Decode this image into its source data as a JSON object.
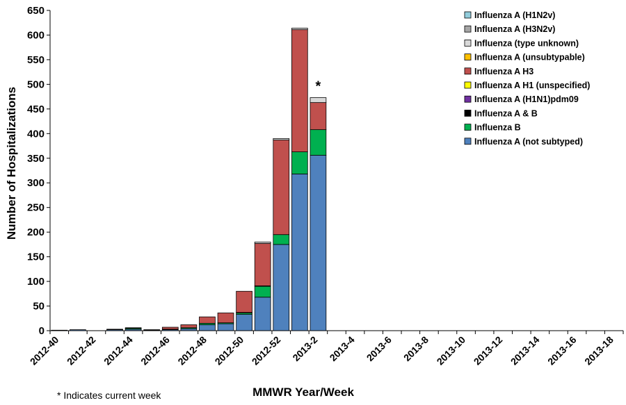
{
  "chart_data": {
    "type": "bar",
    "stacked": true,
    "title": "",
    "xlabel": "MMWR Year/Week",
    "ylabel": "Number of Hospitalizations",
    "ylim": [
      0,
      650
    ],
    "yticks": [
      0,
      50,
      100,
      150,
      200,
      250,
      300,
      350,
      400,
      450,
      500,
      550,
      600,
      650
    ],
    "categories": [
      "2012-40",
      "2012-41",
      "2012-42",
      "2012-43",
      "2012-44",
      "2012-45",
      "2012-46",
      "2012-47",
      "2012-48",
      "2012-49",
      "2012-50",
      "2012-51",
      "2012-52",
      "2013-1",
      "2013-2",
      "2013-3",
      "2013-4",
      "2013-5",
      "2013-6",
      "2013-7",
      "2013-8",
      "2013-9",
      "2013-10",
      "2013-11",
      "2013-12",
      "2013-13",
      "2013-14",
      "2013-15",
      "2013-16",
      "2013-17",
      "2013-18"
    ],
    "tick_labels": [
      "2012-40",
      "2012-42",
      "2012-44",
      "2012-46",
      "2012-48",
      "2012-50",
      "2012-52",
      "2013-2",
      "2013-4",
      "2013-6",
      "2013-8",
      "2013-10",
      "2013-12",
      "2013-14",
      "2013-16",
      "2013-18"
    ],
    "series": [
      {
        "name": "Influenza A (not subtyped)",
        "color": "#4f81bd",
        "values": [
          1,
          2,
          0,
          2,
          3,
          1,
          2,
          4,
          12,
          14,
          33,
          68,
          175,
          318,
          356,
          0,
          0,
          0,
          0,
          0,
          0,
          0,
          0,
          0,
          0,
          0,
          0,
          0,
          0,
          0,
          0
        ]
      },
      {
        "name": "Influenza B",
        "color": "#00b050",
        "values": [
          0,
          0,
          0,
          1,
          2,
          1,
          1,
          2,
          3,
          2,
          3,
          22,
          20,
          45,
          52,
          0,
          0,
          0,
          0,
          0,
          0,
          0,
          0,
          0,
          0,
          0,
          0,
          0,
          0,
          0,
          0
        ]
      },
      {
        "name": "Influenza A & B",
        "color": "#000000",
        "values": [
          0,
          0,
          0,
          0,
          1,
          0,
          0,
          0,
          0,
          0,
          1,
          1,
          0,
          0,
          0,
          0,
          0,
          0,
          0,
          0,
          0,
          0,
          0,
          0,
          0,
          0,
          0,
          0,
          0,
          0,
          0
        ]
      },
      {
        "name": "Influenza A (H1N1)pdm09",
        "color": "#7030a0",
        "values": [
          0,
          0,
          0,
          0,
          0,
          0,
          0,
          0,
          0,
          0,
          0,
          0,
          0,
          0,
          0,
          0,
          0,
          0,
          0,
          0,
          0,
          0,
          0,
          0,
          0,
          0,
          0,
          0,
          0,
          0,
          0
        ]
      },
      {
        "name": "Influenza A H1 (unspecified)",
        "color": "#ffff00",
        "values": [
          0,
          0,
          0,
          0,
          0,
          0,
          0,
          0,
          0,
          0,
          0,
          0,
          0,
          0,
          0,
          0,
          0,
          0,
          0,
          0,
          0,
          0,
          0,
          0,
          0,
          0,
          0,
          0,
          0,
          0,
          0
        ]
      },
      {
        "name": "Influenza A H3",
        "color": "#c0504d",
        "values": [
          0,
          0,
          0,
          0,
          0,
          0,
          4,
          6,
          13,
          20,
          43,
          86,
          192,
          248,
          55,
          0,
          0,
          0,
          0,
          0,
          0,
          0,
          0,
          0,
          0,
          0,
          0,
          0,
          0,
          0,
          0
        ]
      },
      {
        "name": "Influenza A (unsubtypable)",
        "color": "#ffc000",
        "values": [
          0,
          0,
          0,
          0,
          0,
          0,
          0,
          0,
          0,
          0,
          0,
          0,
          0,
          0,
          0,
          0,
          0,
          0,
          0,
          0,
          0,
          0,
          0,
          0,
          0,
          0,
          0,
          0,
          0,
          0,
          0
        ]
      },
      {
        "name": "Influenza (type unknown)",
        "color": "#d9d9d9",
        "values": [
          0,
          0,
          0,
          0,
          0,
          0,
          0,
          0,
          0,
          0,
          0,
          3,
          3,
          3,
          10,
          0,
          0,
          0,
          0,
          0,
          0,
          0,
          0,
          0,
          0,
          0,
          0,
          0,
          0,
          0,
          0
        ]
      },
      {
        "name": "Influenza A (H3N2v)",
        "color": "#a6a6a6",
        "values": [
          0,
          0,
          0,
          0,
          0,
          0,
          0,
          0,
          0,
          0,
          0,
          0,
          0,
          0,
          0,
          0,
          0,
          0,
          0,
          0,
          0,
          0,
          0,
          0,
          0,
          0,
          0,
          0,
          0,
          0,
          0
        ]
      },
      {
        "name": "Influenza A (H1N2v)",
        "color": "#92cddc",
        "values": [
          0,
          0,
          0,
          0,
          0,
          0,
          0,
          0,
          0,
          0,
          0,
          0,
          0,
          0,
          0,
          0,
          0,
          0,
          0,
          0,
          0,
          0,
          0,
          0,
          0,
          0,
          0,
          0,
          0,
          0,
          0
        ]
      }
    ],
    "legend_position": "top-right",
    "annotation": {
      "text": "*",
      "category": "2013-2"
    },
    "footnote": "* Indicates current week"
  }
}
